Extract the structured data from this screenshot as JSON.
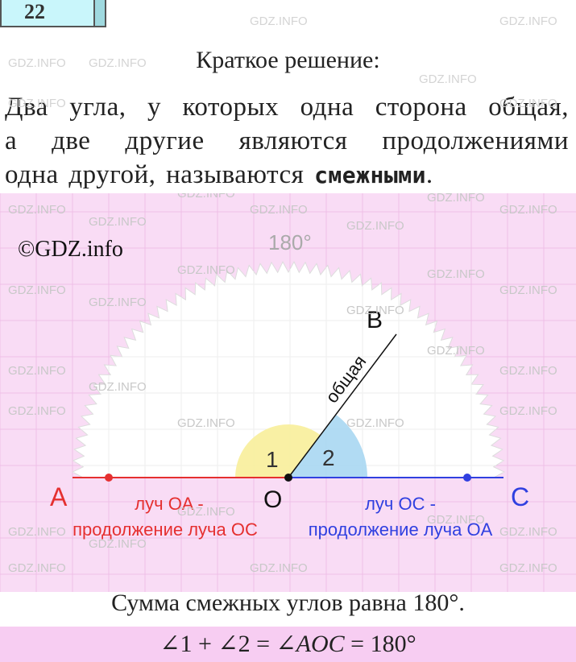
{
  "header": {
    "number": "22",
    "title": "Краткое решение:"
  },
  "paragraph": {
    "lines": [
      "Два угла, у которых одна сторона общая,",
      "а две другие являются продолжениями"
    ],
    "last_line": "одна другой, называются ",
    "bold": "смежными",
    "end": "."
  },
  "watermark": "GDZ.INFO",
  "diagram": {
    "copyright": "©GDZ.info",
    "arc_label": "180°",
    "point_b": "B",
    "shared_side": "общая",
    "angle_1": "1",
    "angle_2": "2",
    "point_a": "A",
    "point_o": "O",
    "point_c": "C",
    "ray_oa": [
      "луч OA -",
      "продолжение луча OC"
    ],
    "ray_oc": [
      "луч OC -",
      "продолжение луча OA"
    ]
  },
  "conclusion": "Сумма смежных углов равна 180°.",
  "formula": {
    "start": "∠1 + ∠2 = ∠",
    "italic": "AOC",
    "end": " = 180°"
  }
}
